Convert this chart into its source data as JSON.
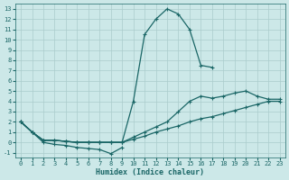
{
  "xlabel": "Humidex (Indice chaleur)",
  "background_color": "#cce8e8",
  "grid_color": "#aacccc",
  "line_color": "#1a6666",
  "xlim": [
    -0.5,
    23.5
  ],
  "ylim": [
    -1.5,
    13.5
  ],
  "xticks": [
    0,
    1,
    2,
    3,
    4,
    5,
    6,
    7,
    8,
    9,
    10,
    11,
    12,
    13,
    14,
    15,
    16,
    17,
    18,
    19,
    20,
    21,
    22,
    23
  ],
  "yticks": [
    -1,
    0,
    1,
    2,
    3,
    4,
    5,
    6,
    7,
    8,
    9,
    10,
    11,
    12,
    13
  ],
  "series": [
    {
      "x": [
        0,
        1,
        2,
        3,
        4,
        5,
        6,
        7,
        8,
        9,
        10,
        11,
        12,
        13,
        14,
        15,
        16,
        17
      ],
      "y": [
        2,
        1,
        0.2,
        0.2,
        0.1,
        0.0,
        0.0,
        0.0,
        0.0,
        0.0,
        4.0,
        10.5,
        12.0,
        13.0,
        12.5,
        11.0,
        7.5,
        7.3
      ]
    },
    {
      "x": [
        0,
        1,
        2,
        3,
        4,
        5,
        6,
        7,
        8,
        9,
        10,
        11,
        12,
        13,
        14,
        15,
        16,
        17,
        18,
        19,
        20,
        21,
        22,
        23
      ],
      "y": [
        2,
        1,
        0.2,
        0.2,
        0.1,
        0.0,
        0.0,
        0.0,
        0.0,
        0.0,
        0.5,
        1.0,
        1.5,
        2.0,
        3.0,
        4.0,
        4.5,
        4.3,
        4.5,
        4.8,
        5.0,
        4.5,
        4.2,
        4.2
      ]
    },
    {
      "x": [
        0,
        1,
        2,
        3,
        4,
        5,
        6,
        7,
        8,
        9,
        10,
        11,
        12,
        13,
        14,
        15,
        16,
        17,
        18,
        19,
        20,
        21,
        22,
        23
      ],
      "y": [
        2,
        1,
        0.2,
        0.2,
        0.1,
        0.0,
        0.0,
        0.0,
        0.0,
        0.0,
        0.3,
        0.6,
        1.0,
        1.3,
        1.6,
        2.0,
        2.3,
        2.5,
        2.8,
        3.1,
        3.4,
        3.7,
        4.0,
        4.0
      ]
    },
    {
      "x": [
        0,
        1,
        2,
        3,
        4,
        5,
        6,
        7,
        8,
        9
      ],
      "y": [
        2,
        1,
        0.0,
        -0.2,
        -0.3,
        -0.5,
        -0.6,
        -0.7,
        -1.1,
        -0.5
      ]
    }
  ]
}
